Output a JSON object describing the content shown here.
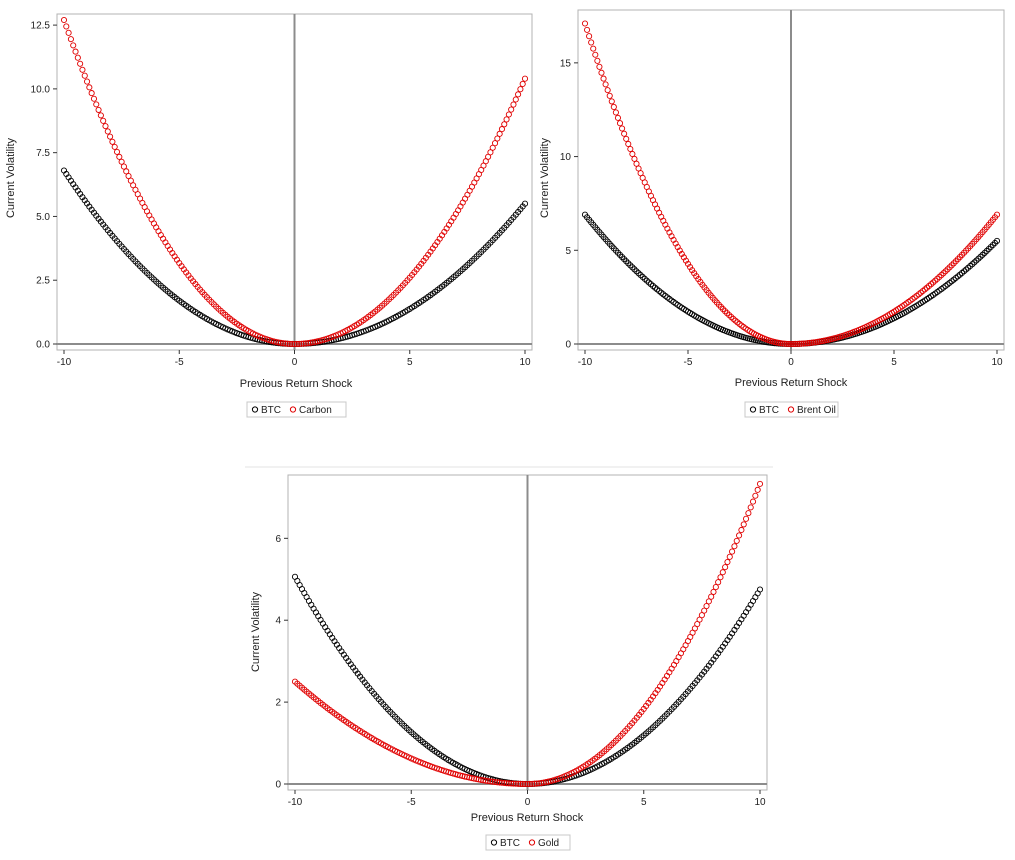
{
  "chart_data": [
    {
      "type": "scatter",
      "xlabel": "Previous Return Shock",
      "ylabel": "Current Volatility",
      "xlim": [
        -10,
        10
      ],
      "ylim": [
        0,
        12.7
      ],
      "xticks": [
        "-10",
        "-5",
        "0",
        "5",
        "10"
      ],
      "yticks": [
        "0.0",
        "2.5",
        "5.0",
        "7.5",
        "10.0",
        "12.5"
      ],
      "reference_lines": {
        "x": 0,
        "y": 0
      },
      "legend_position": "bottom-center",
      "series": [
        {
          "name": "BTC",
          "color": "#000000",
          "marker": "open-circle",
          "left_coef": 0.068,
          "right_coef": 0.055
        },
        {
          "name": "Carbon",
          "color": "#e00000",
          "marker": "open-circle",
          "left_coef": 0.127,
          "right_coef": 0.104
        }
      ]
    },
    {
      "type": "scatter",
      "xlabel": "Previous Return Shock",
      "ylabel": "Current Volatility",
      "xlim": [
        -10,
        10
      ],
      "ylim": [
        0,
        17.5
      ],
      "xticks": [
        "-10",
        "-5",
        "0",
        "5",
        "10"
      ],
      "yticks": [
        "0",
        "5",
        "10",
        "15"
      ],
      "reference_lines": {
        "x": 0,
        "y": 0
      },
      "legend_position": "bottom-center",
      "series": [
        {
          "name": "BTC",
          "color": "#000000",
          "marker": "open-circle",
          "left_coef": 0.069,
          "right_coef": 0.055
        },
        {
          "name": "Brent Oil",
          "color": "#e00000",
          "marker": "open-circle",
          "left_coef": 0.171,
          "right_coef": 0.069
        }
      ]
    },
    {
      "type": "scatter",
      "xlabel": "Previous Return Shock",
      "ylabel": "Current Volatility",
      "xlim": [
        -10,
        10
      ],
      "ylim": [
        0,
        7.4
      ],
      "xticks": [
        "-10",
        "-5",
        "0",
        "5",
        "10"
      ],
      "yticks": [
        "0",
        "2",
        "4",
        "6"
      ],
      "reference_lines": {
        "x": 0,
        "y": 0
      },
      "legend_position": "bottom-center",
      "series": [
        {
          "name": "BTC",
          "color": "#000000",
          "marker": "open-circle",
          "left_coef": 0.0506,
          "right_coef": 0.0475
        },
        {
          "name": "Gold",
          "color": "#e00000",
          "marker": "open-circle",
          "left_coef": 0.025,
          "right_coef": 0.0733
        }
      ]
    }
  ]
}
